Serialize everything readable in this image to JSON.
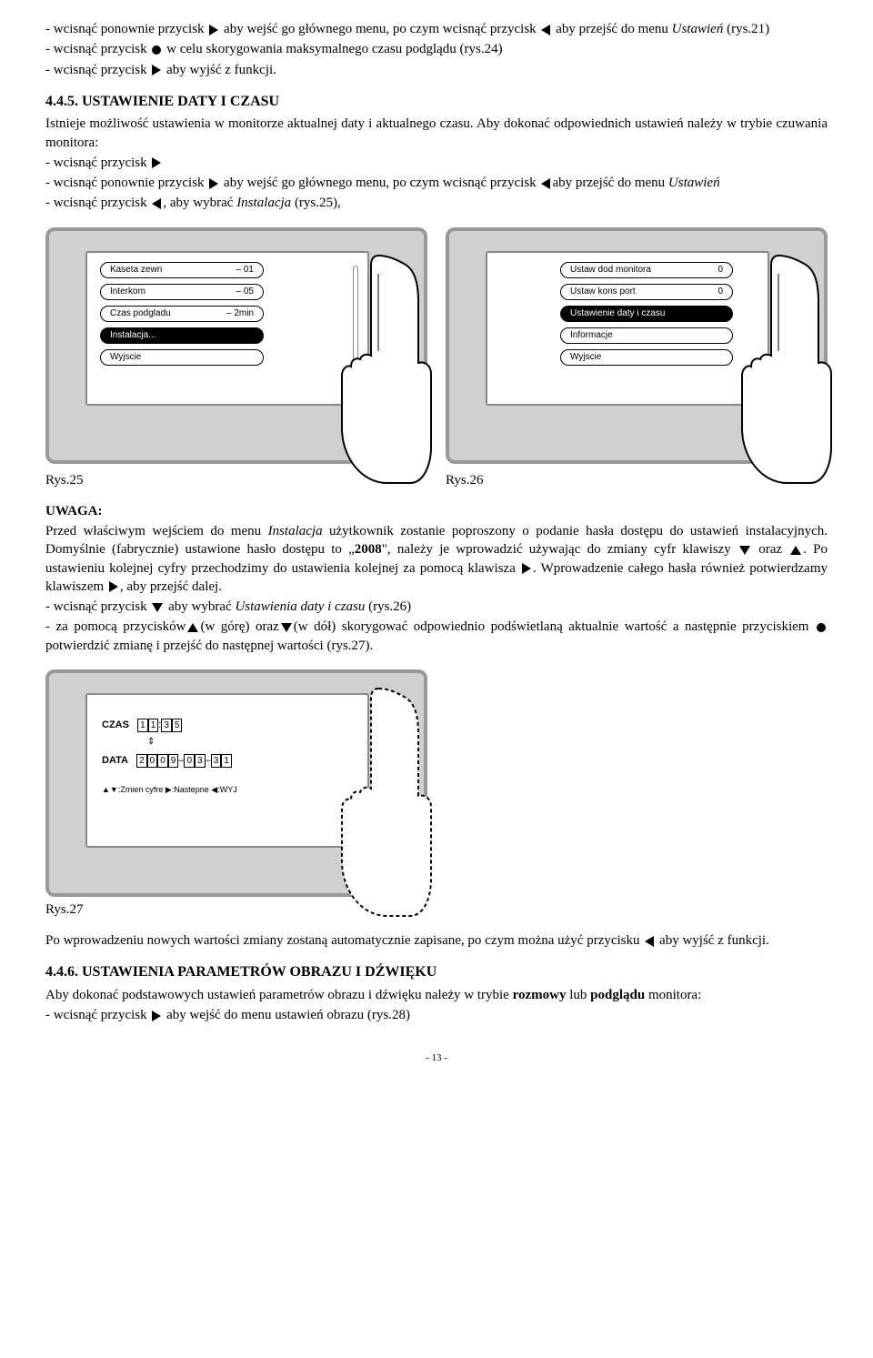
{
  "para1": {
    "t1": "- wcisnąć ponownie przycisk ",
    "t2": " aby wejść go głównego menu, po czym wcisnąć przycisk ",
    "t3": " aby przejść do menu ",
    "ital": "Ustawień",
    "t4": " (rys.21)"
  },
  "para2": {
    "t1": "- wcisnąć przycisk ",
    "t2": " w celu skorygowania maksymalnego czasu podglądu (rys.24)"
  },
  "para3": {
    "t1": "- wcisnąć przycisk ",
    "t2": " aby wyjść z funkcji."
  },
  "h445": "4.4.5. USTAWIENIE DATY I CZASU",
  "p445a": "Istnieje możliwość ustawienia w monitorze aktualnej daty i aktualnego czasu. Aby dokonać odpowiednich ustawień należy w trybie czuwania monitora:",
  "p445b": "- wcisnąć przycisk ",
  "p445c": {
    "t1": "- wcisnąć ponownie przycisk ",
    "t2": " aby wejść go głównego menu, po czym wcisnąć przycisk ",
    "t3": "aby przejść do menu ",
    "ital": "Ustawień"
  },
  "p445d": {
    "t1": "- wcisnąć przycisk ",
    "t2": ", aby wybrać ",
    "ital": "Instalacja",
    "t3": " (rys.25),"
  },
  "fig25": {
    "items": [
      {
        "label": "Kaseta zewn",
        "val": "– 01",
        "sel": false
      },
      {
        "label": "Interkom",
        "val": "– 05",
        "sel": false
      },
      {
        "label": "Czas podgladu",
        "val": "– 2min",
        "sel": false
      },
      {
        "label": "Instalacja...",
        "val": "",
        "sel": true
      },
      {
        "label": "Wyjscie",
        "val": "",
        "sel": false
      }
    ],
    "caption": "Rys.25"
  },
  "fig26": {
    "items": [
      {
        "label": "Ustaw dod monitora",
        "val": "0",
        "sel": false
      },
      {
        "label": "Ustaw kons port",
        "val": "0",
        "sel": false
      },
      {
        "label": "Ustawienie daty i czasu",
        "val": "",
        "sel": true
      },
      {
        "label": "Informacje",
        "val": "",
        "sel": false
      },
      {
        "label": "Wyjscie",
        "val": "",
        "sel": false
      }
    ],
    "caption": "Rys.26"
  },
  "uwaga_h": "UWAGA:",
  "uwaga1": {
    "t1": "Przed właściwym wejściem do menu ",
    "ital": "Instalacja",
    "t2": " użytkownik zostanie poproszony o podanie hasła dostępu do ustawień instalacyjnych. Domyślnie (fabrycznie) ustawione hasło dostępu to „",
    "bold": "2008",
    "t3": "\", należy je wprowadzić używając do zmiany cyfr klawiszy ",
    "t4": " oraz ",
    "t5": ". Po ustawieniu kolejnej cyfry przechodzimy do ustawienia kolejnej za pomocą klawisza ",
    "t6": ". Wprowadzenie całego hasła również potwierdzamy klawiszem ",
    "t7": ", aby przejść dalej."
  },
  "uwaga2": {
    "t1": "- wcisnąć przycisk ",
    "t2": " aby wybrać ",
    "ital": "Ustawienia daty i czasu",
    "t3": " (rys.26)"
  },
  "uwaga3": {
    "t1": "- za pomocą przycisków",
    "t2": "(w górę) oraz",
    "t3": "(w dół) skorygować odpowiednio podświetlaną aktualnie wartość a następnie przyciskiem ",
    "t4": " potwierdzić zmianę i przejść do następnej wartości (rys.27)."
  },
  "fig27": {
    "czas_lbl": "CZAS",
    "czas_h": "11",
    "czas_m": "35",
    "data_lbl": "DATA",
    "data_y": "2009",
    "data_m": "03",
    "data_d": "31",
    "legend": "▲▼:Zmien cyfre   ▶:Nastepne   ◀:WYJ",
    "caption": "Rys.27"
  },
  "after27": {
    "t1": "Po wprowadzeniu nowych wartości zmiany zostaną automatycznie zapisane, po czym można użyć przycisku ",
    "t2": " aby wyjść z funkcji."
  },
  "h446": "4.4.6. USTAWIENIA PARAMETRÓW OBRAZU I DŹWIĘKU",
  "p446a": {
    "t1": "Aby dokonać podstawowych ustawień parametrów obrazu i dźwięku należy w trybie ",
    "b1": "rozmowy",
    "t2": " lub ",
    "b2": "podglądu",
    "t3": " monitora:"
  },
  "p446b": {
    "t1": "- wcisnąć przycisk ",
    "t2": " aby wejść do menu ustawień obrazu (rys.28)"
  },
  "pagefoot": "- 13 -"
}
